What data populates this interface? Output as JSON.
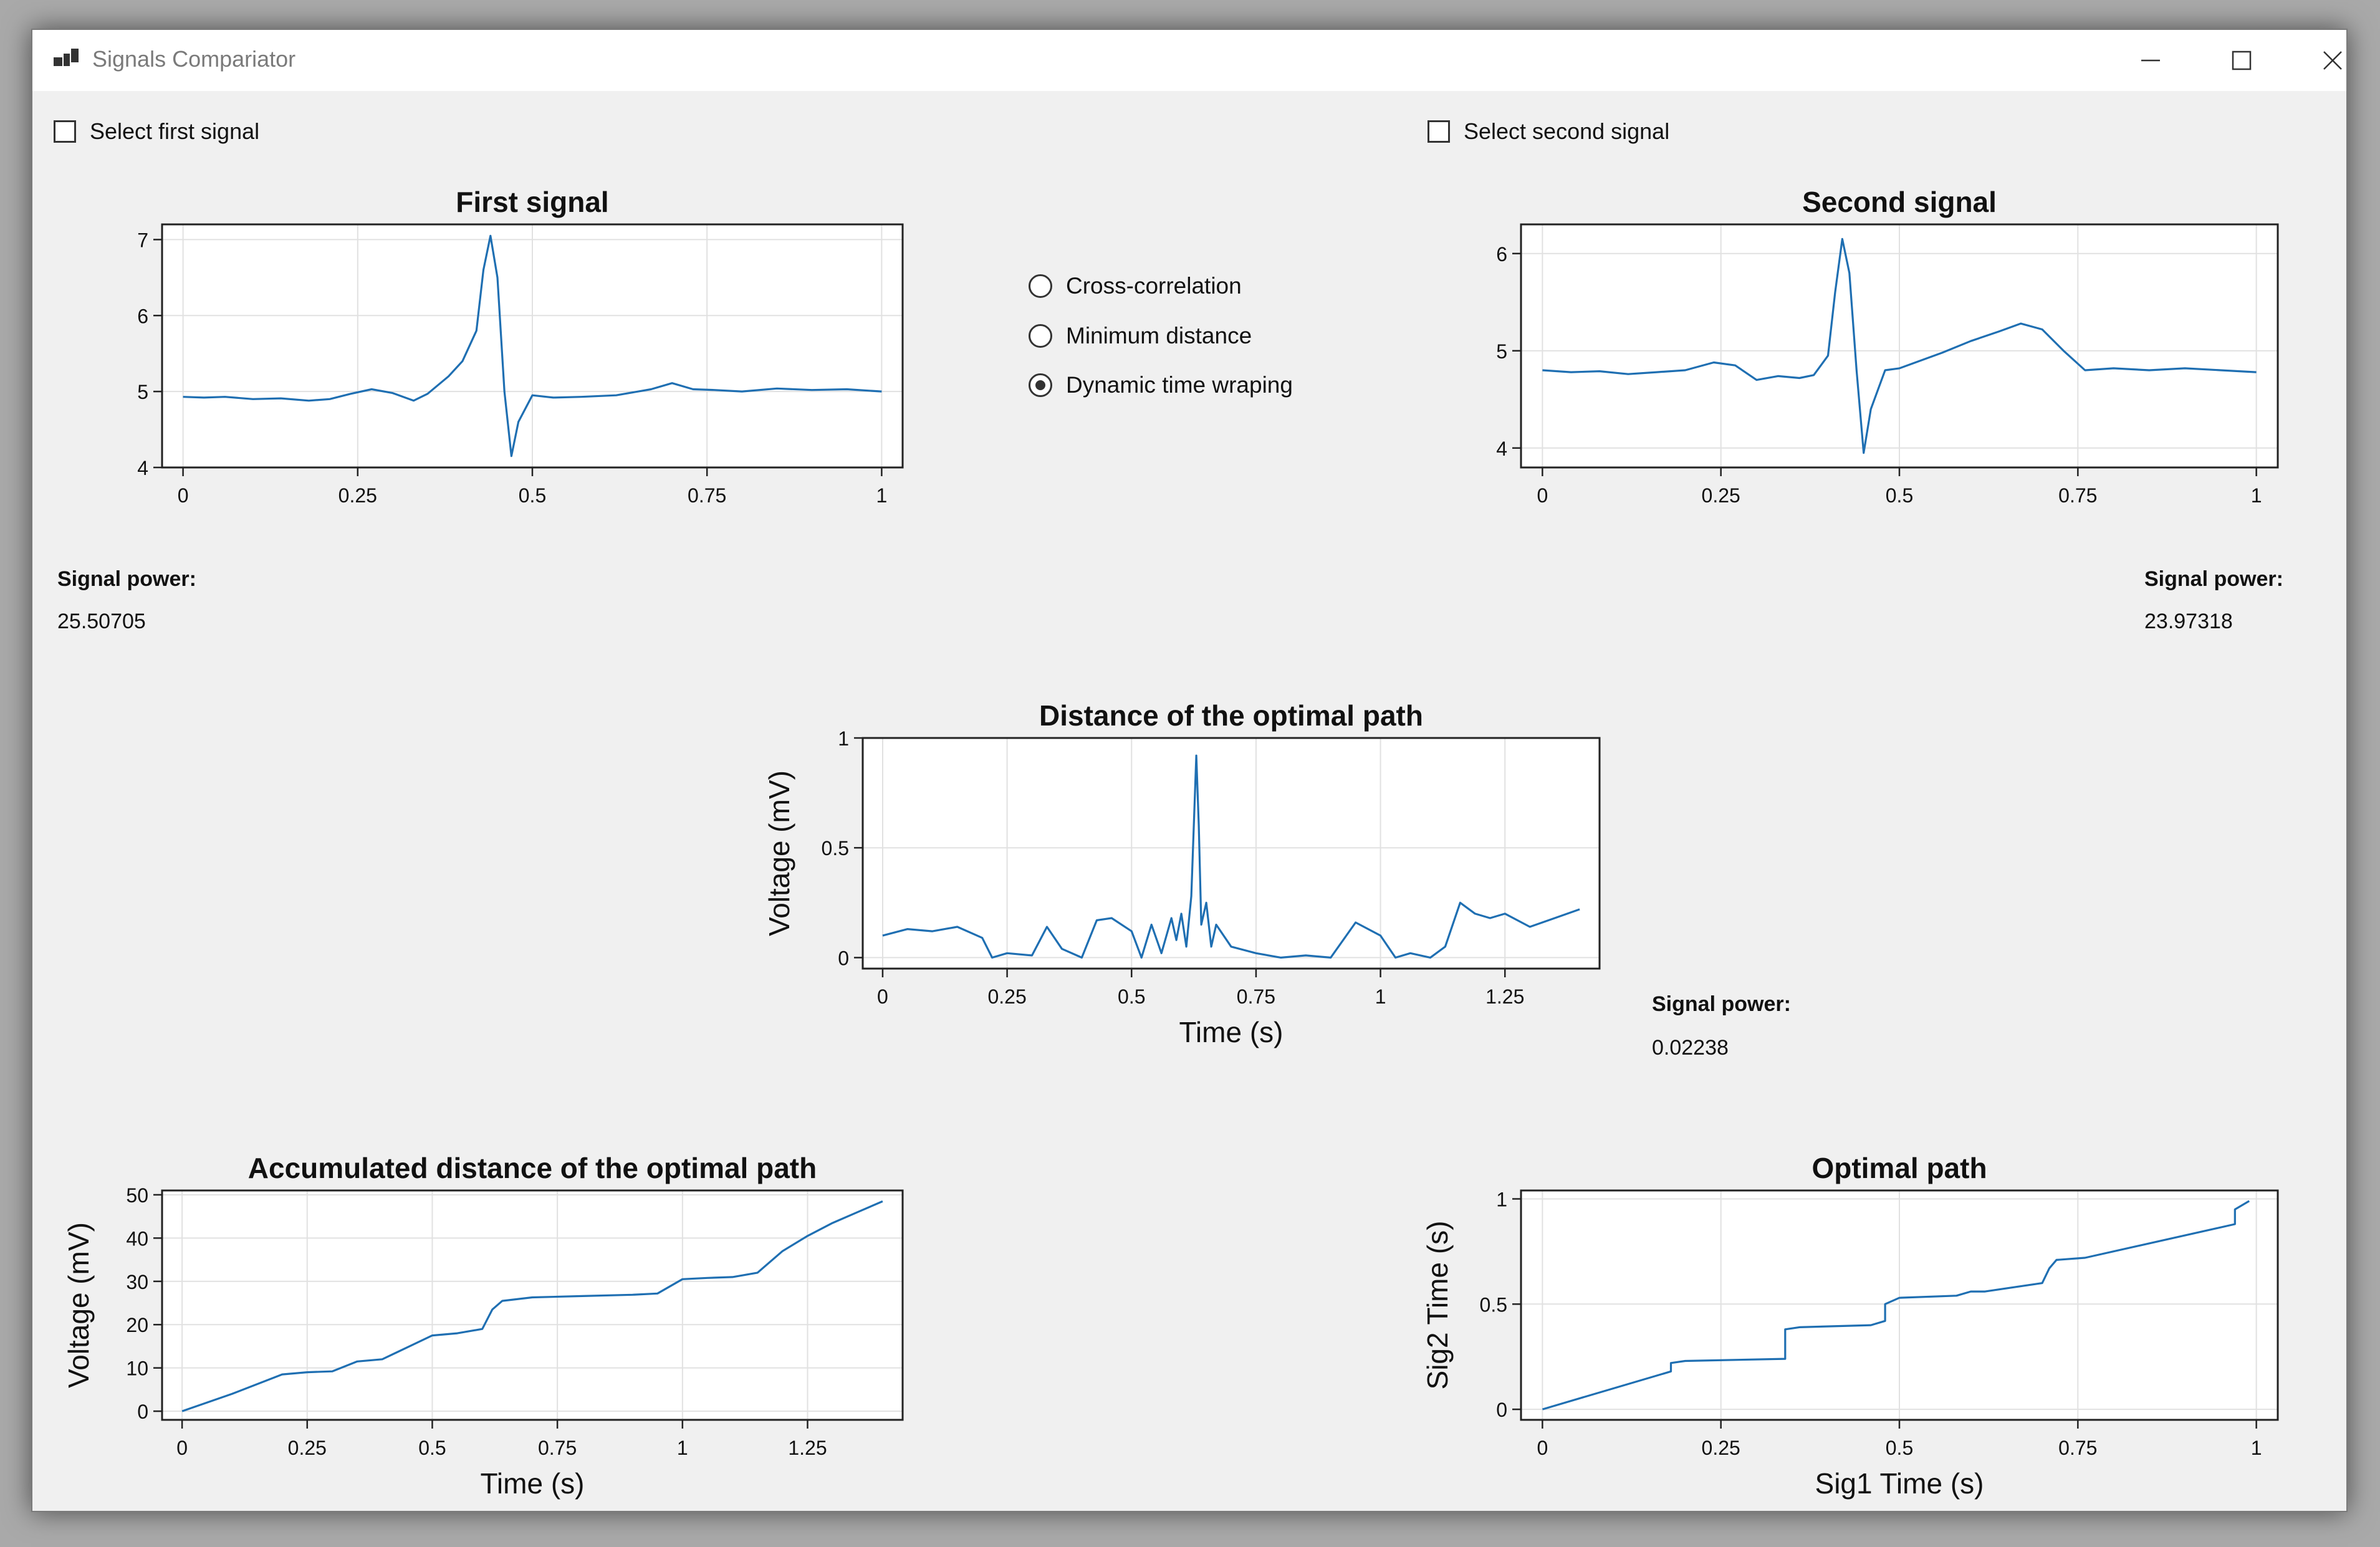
{
  "window": {
    "title": "Signals Compariator",
    "controls": [
      "minimize-icon",
      "maximize-icon",
      "close-icon"
    ]
  },
  "checkboxes": {
    "first": "Select first signal",
    "second": "Select second signal"
  },
  "methods": {
    "options": [
      "Cross-correlation",
      "Minimum distance",
      "Dynamic time wraping"
    ],
    "selected": "Dynamic time wraping"
  },
  "power": {
    "label": "Signal power:",
    "first": "25.50705",
    "second": "23.97318",
    "distance": "0.02238"
  },
  "colors": {
    "line": "#1f6fb2",
    "grid": "#e1e1e1",
    "background": "#f0f0f0"
  },
  "chart_data": [
    {
      "id": "first",
      "type": "line",
      "title": "First signal",
      "xlabel": "",
      "ylabel": "",
      "xlim": [
        -0.03,
        1.03
      ],
      "ylim": [
        4,
        7.2
      ],
      "xticks": [
        0,
        0.25,
        0.5,
        0.75,
        1
      ],
      "yticks": [
        4,
        5,
        6,
        7
      ],
      "xtick_labels": [
        "0",
        "0.25",
        "0.5",
        "0.75",
        "1"
      ],
      "ytick_labels": [
        "4",
        "5",
        "6",
        "7"
      ],
      "grid": true,
      "x": [
        0,
        0.03,
        0.06,
        0.1,
        0.14,
        0.18,
        0.21,
        0.24,
        0.27,
        0.3,
        0.33,
        0.35,
        0.38,
        0.4,
        0.42,
        0.43,
        0.44,
        0.45,
        0.46,
        0.47,
        0.48,
        0.5,
        0.53,
        0.57,
        0.62,
        0.67,
        0.7,
        0.73,
        0.76,
        0.8,
        0.85,
        0.9,
        0.95,
        1
      ],
      "values": [
        4.93,
        4.92,
        4.93,
        4.9,
        4.91,
        4.88,
        4.9,
        4.97,
        5.03,
        4.98,
        4.88,
        4.97,
        5.2,
        5.4,
        5.8,
        6.6,
        7.05,
        6.5,
        5.0,
        4.15,
        4.6,
        4.95,
        4.92,
        4.93,
        4.95,
        5.03,
        5.11,
        5.03,
        5.02,
        5.0,
        5.04,
        5.02,
        5.03,
        5.0
      ]
    },
    {
      "id": "second",
      "type": "line",
      "title": "Second signal",
      "xlabel": "",
      "ylabel": "",
      "xlim": [
        -0.03,
        1.03
      ],
      "ylim": [
        3.8,
        6.3
      ],
      "xticks": [
        0,
        0.25,
        0.5,
        0.75,
        1
      ],
      "yticks": [
        4,
        5,
        6
      ],
      "xtick_labels": [
        "0",
        "0.25",
        "0.5",
        "0.75",
        "1"
      ],
      "ytick_labels": [
        "4",
        "5",
        "6"
      ],
      "grid": true,
      "x": [
        0,
        0.04,
        0.08,
        0.12,
        0.16,
        0.2,
        0.24,
        0.27,
        0.3,
        0.33,
        0.36,
        0.38,
        0.4,
        0.41,
        0.42,
        0.43,
        0.44,
        0.45,
        0.46,
        0.48,
        0.5,
        0.53,
        0.56,
        0.6,
        0.64,
        0.67,
        0.7,
        0.73,
        0.76,
        0.8,
        0.85,
        0.9,
        0.95,
        1
      ],
      "values": [
        4.8,
        4.78,
        4.79,
        4.76,
        4.78,
        4.8,
        4.88,
        4.85,
        4.7,
        4.74,
        4.72,
        4.75,
        4.95,
        5.6,
        6.15,
        5.8,
        4.8,
        3.95,
        4.4,
        4.8,
        4.82,
        4.9,
        4.98,
        5.1,
        5.2,
        5.28,
        5.22,
        5.0,
        4.8,
        4.82,
        4.8,
        4.82,
        4.8,
        4.78
      ]
    },
    {
      "id": "distance",
      "type": "line",
      "title": "Distance of the optimal path",
      "xlabel": "Time (s)",
      "ylabel": "Voltage (mV)",
      "xlim": [
        -0.04,
        1.44
      ],
      "ylim": [
        -0.05,
        1.0
      ],
      "xticks": [
        0,
        0.25,
        0.5,
        0.75,
        1,
        1.25
      ],
      "yticks": [
        0,
        0.5,
        1
      ],
      "xtick_labels": [
        "0",
        "0.25",
        "0.5",
        "0.75",
        "1",
        "1.25"
      ],
      "ytick_labels": [
        "0",
        "0.5",
        "1"
      ],
      "grid": true,
      "x": [
        0,
        0.05,
        0.1,
        0.15,
        0.2,
        0.22,
        0.25,
        0.3,
        0.33,
        0.36,
        0.4,
        0.43,
        0.46,
        0.5,
        0.52,
        0.54,
        0.56,
        0.58,
        0.59,
        0.6,
        0.61,
        0.62,
        0.63,
        0.635,
        0.64,
        0.65,
        0.66,
        0.67,
        0.7,
        0.75,
        0.8,
        0.85,
        0.9,
        0.95,
        1.0,
        1.03,
        1.06,
        1.1,
        1.13,
        1.16,
        1.19,
        1.22,
        1.25,
        1.3,
        1.35,
        1.4
      ],
      "values": [
        0.1,
        0.13,
        0.12,
        0.14,
        0.09,
        0.0,
        0.02,
        0.01,
        0.14,
        0.04,
        0.0,
        0.17,
        0.18,
        0.12,
        0.0,
        0.15,
        0.02,
        0.18,
        0.08,
        0.2,
        0.05,
        0.28,
        0.92,
        0.6,
        0.15,
        0.25,
        0.05,
        0.15,
        0.05,
        0.02,
        0.0,
        0.01,
        0.0,
        0.16,
        0.1,
        0.0,
        0.02,
        0.0,
        0.05,
        0.25,
        0.2,
        0.18,
        0.2,
        0.14,
        0.18,
        0.22
      ]
    },
    {
      "id": "accumulated",
      "type": "line",
      "title": "Accumulated distance of the optimal path",
      "xlabel": "Time (s)",
      "ylabel": "Voltage (mV)",
      "xlim": [
        -0.04,
        1.44
      ],
      "ylim": [
        -2,
        51
      ],
      "xticks": [
        0,
        0.25,
        0.5,
        0.75,
        1,
        1.25
      ],
      "yticks": [
        0,
        10,
        20,
        30,
        40,
        50
      ],
      "xtick_labels": [
        "0",
        "0.25",
        "0.5",
        "0.75",
        "1",
        "1.25"
      ],
      "ytick_labels": [
        "0",
        "10",
        "20",
        "30",
        "40",
        "50"
      ],
      "grid": true,
      "x": [
        0,
        0.1,
        0.2,
        0.25,
        0.3,
        0.35,
        0.4,
        0.5,
        0.55,
        0.6,
        0.62,
        0.64,
        0.7,
        0.8,
        0.9,
        0.95,
        1.0,
        1.05,
        1.1,
        1.15,
        1.2,
        1.25,
        1.3,
        1.35,
        1.4
      ],
      "values": [
        0,
        4,
        8.5,
        9,
        9.2,
        11.5,
        12,
        17.5,
        18,
        19,
        23.5,
        25.5,
        26.3,
        26.6,
        26.9,
        27.2,
        30.5,
        30.8,
        31,
        32,
        37,
        40.5,
        43.5,
        46,
        48.5
      ]
    },
    {
      "id": "path",
      "type": "line",
      "title": "Optimal path",
      "xlabel": "Sig1 Time (s)",
      "ylabel": "Sig2 Time (s)",
      "xlim": [
        -0.03,
        1.03
      ],
      "ylim": [
        -0.05,
        1.04
      ],
      "xticks": [
        0,
        0.25,
        0.5,
        0.75,
        1
      ],
      "yticks": [
        0,
        0.5,
        1
      ],
      "xtick_labels": [
        "0",
        "0.25",
        "0.5",
        "0.75",
        "1"
      ],
      "ytick_labels": [
        "0",
        "0.5",
        "1"
      ],
      "grid": true,
      "x": [
        0,
        0.18,
        0.18,
        0.2,
        0.34,
        0.34,
        0.36,
        0.46,
        0.48,
        0.48,
        0.5,
        0.58,
        0.6,
        0.62,
        0.66,
        0.7,
        0.71,
        0.72,
        0.76,
        0.97,
        0.97,
        0.99
      ],
      "values": [
        0,
        0.18,
        0.22,
        0.23,
        0.24,
        0.38,
        0.39,
        0.4,
        0.42,
        0.5,
        0.53,
        0.54,
        0.56,
        0.56,
        0.58,
        0.6,
        0.67,
        0.71,
        0.72,
        0.88,
        0.95,
        0.99
      ]
    }
  ]
}
